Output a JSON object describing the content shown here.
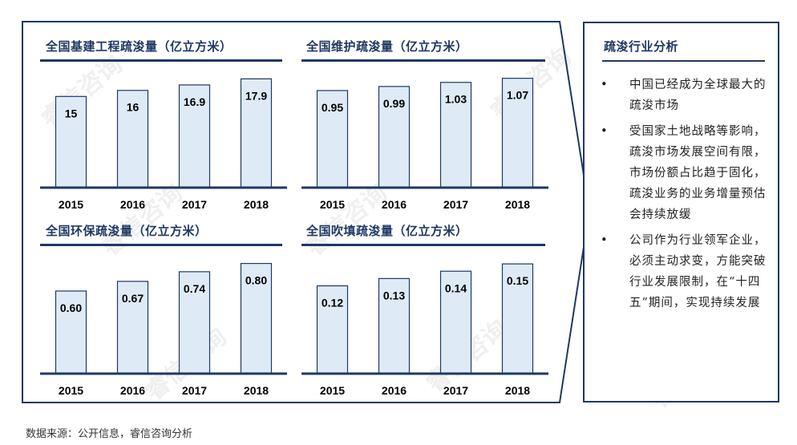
{
  "chart_data": [
    {
      "type": "bar",
      "title": "全国基建工程疏浚量（亿立方米）",
      "categories": [
        "2015",
        "2016",
        "2017",
        "2018"
      ],
      "values": [
        15,
        16,
        16.9,
        17.9
      ],
      "labels": [
        "15",
        "16",
        "16.9",
        "17.9"
      ],
      "ylim": [
        0,
        19
      ]
    },
    {
      "type": "bar",
      "title": "全国维护疏浚量（亿立方米）",
      "categories": [
        "2015",
        "2016",
        "2017",
        "2018"
      ],
      "values": [
        0.95,
        0.99,
        1.03,
        1.07
      ],
      "labels": [
        "0.95",
        "0.99",
        "1.03",
        "1.07"
      ],
      "ylim": [
        0,
        1.13
      ]
    },
    {
      "type": "bar",
      "title": "全国环保疏浚量（亿立方米）",
      "categories": [
        "2015",
        "2016",
        "2017",
        "2018"
      ],
      "values": [
        0.6,
        0.67,
        0.74,
        0.8
      ],
      "labels": [
        "0.60",
        "0.67",
        "0.74",
        "0.80"
      ],
      "ylim": [
        0,
        0.85
      ]
    },
    {
      "type": "bar",
      "title": "全国吹填疏浚量（亿立方米）",
      "categories": [
        "2015",
        "2016",
        "2017",
        "2018"
      ],
      "values": [
        0.12,
        0.13,
        0.14,
        0.15
      ],
      "labels": [
        "0.12",
        "0.13",
        "0.14",
        "0.15"
      ],
      "ylim": [
        0,
        0.16
      ]
    }
  ],
  "analysis": {
    "title": "疏浚行业分析",
    "bullet_symbol": "•",
    "points": [
      "中国已经成为全球最大的疏浚市场",
      "受国家土地战略等影响，疏浚市场发展空间有限，市场份额占比趋于固化，疏浚业务的业务增量预估会持续放缓",
      "公司作为行业领军企业，必须主动求变，方能突破行业发展限制，在“十四五”期间，实现持续发展"
    ]
  },
  "source_note": "数据来源：公开信息，睿信咨询分析",
  "watermark": "睿信咨询",
  "colors": {
    "navy": "#1f3864",
    "bar_fill": "#deebf7"
  }
}
